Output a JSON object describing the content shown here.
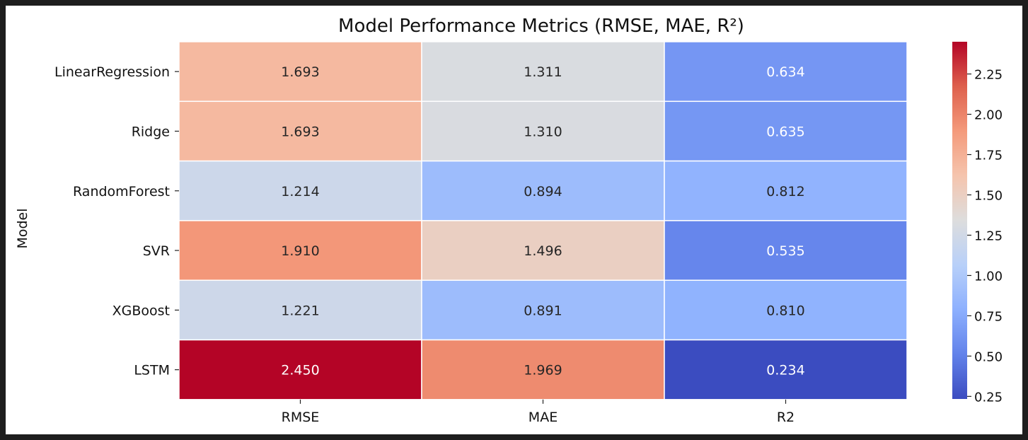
{
  "chart_data": {
    "type": "heatmap",
    "title": "Model Performance Metrics (RMSE, MAE, R²)",
    "ylabel": "Model",
    "xlabel": "",
    "rows": [
      "LinearRegression",
      "Ridge",
      "RandomForest",
      "SVR",
      "XGBoost",
      "LSTM"
    ],
    "columns": [
      "RMSE",
      "MAE",
      "R2"
    ],
    "values": [
      [
        1.693,
        1.311,
        0.634
      ],
      [
        1.693,
        1.31,
        0.635
      ],
      [
        1.214,
        0.894,
        0.812
      ],
      [
        1.91,
        1.496,
        0.535
      ],
      [
        1.221,
        0.891,
        0.81
      ],
      [
        2.45,
        1.969,
        0.234
      ]
    ],
    "value_labels": [
      [
        "1.693",
        "1.311",
        "0.634"
      ],
      [
        "1.693",
        "1.310",
        "0.635"
      ],
      [
        "1.214",
        "0.894",
        "0.812"
      ],
      [
        "1.910",
        "1.496",
        "0.535"
      ],
      [
        "1.221",
        "0.891",
        "0.810"
      ],
      [
        "2.450",
        "1.969",
        "0.234"
      ]
    ],
    "colormap": "coolwarm",
    "vmin": 0.234,
    "vmax": 2.45,
    "colorbar_ticks": [
      0.25,
      0.5,
      0.75,
      1.0,
      1.25,
      1.5,
      1.75,
      2.0,
      2.25
    ],
    "colorbar_tick_labels": [
      "0.25",
      "0.50",
      "0.75",
      "1.00",
      "1.25",
      "1.50",
      "1.75",
      "2.00",
      "2.25"
    ],
    "colorbar_position": "right",
    "grid": false
  }
}
